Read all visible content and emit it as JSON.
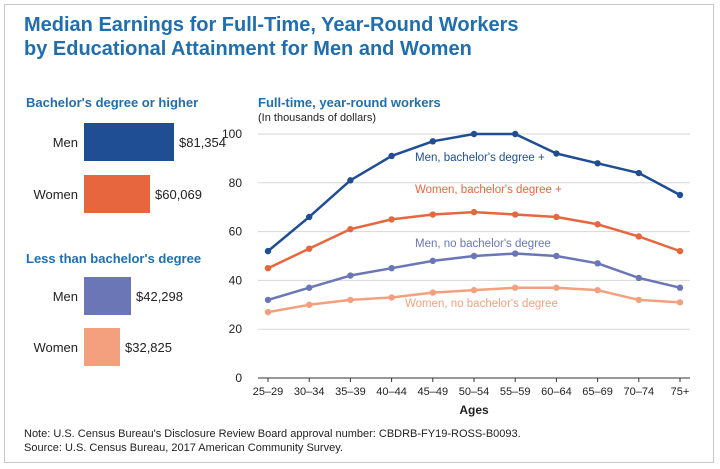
{
  "title_line1": "Median Earnings for Full-Time, Year-Round Workers",
  "title_line2": "by Educational Attainment for Men and Women",
  "note": "Note: U.S. Census Bureau's Disclosure Review Board approval number: CBDRB-FY19-ROSS-B0093.",
  "source": "Source: U.S. Census Bureau, 2017 American Community Survey.",
  "colors": {
    "title": "#1f6fb0",
    "men_ba": "#1f4e94",
    "women_ba": "#e8663d",
    "men_no_ba": "#6a76b5",
    "women_no_ba": "#f4a07e"
  },
  "chart_data": [
    {
      "type": "bar",
      "title": "Bachelor's degree or higher",
      "categories": [
        "Men",
        "Women"
      ],
      "values": [
        81354,
        60069
      ],
      "data_labels": [
        "$81,354",
        "$60,069"
      ],
      "colors": [
        "#1f4e94",
        "#e8663d"
      ]
    },
    {
      "type": "bar",
      "title": "Less than bachelor's degree",
      "categories": [
        "Men",
        "Women"
      ],
      "values": [
        42298,
        32825
      ],
      "data_labels": [
        "$42,298",
        "$32,825"
      ],
      "colors": [
        "#6a76b5",
        "#f4a07e"
      ]
    },
    {
      "type": "line",
      "title": "Full-time, year-round workers",
      "subtitle": "(In thousands of dollars)",
      "xlabel": "Ages",
      "ylabel": "",
      "categories": [
        "25–29",
        "30–34",
        "35–39",
        "40–44",
        "45–49",
        "50–54",
        "55–59",
        "60–64",
        "65–69",
        "70–74",
        "75+"
      ],
      "ylim": [
        0,
        100
      ],
      "yticks": [
        0,
        20,
        40,
        60,
        80,
        100
      ],
      "grid": true,
      "series": [
        {
          "name": "Men, bachelor's degree +",
          "color": "#1f4e94",
          "values": [
            52,
            66,
            81,
            91,
            97,
            100,
            100,
            92,
            88,
            84,
            75
          ]
        },
        {
          "name": "Women, bachelor's degree +",
          "color": "#e8663d",
          "values": [
            45,
            53,
            61,
            65,
            67,
            68,
            67,
            66,
            63,
            58,
            52
          ]
        },
        {
          "name": "Men, no bachelor's degree",
          "color": "#6a76b5",
          "values": [
            32,
            37,
            42,
            45,
            48,
            50,
            51,
            50,
            47,
            41,
            37
          ]
        },
        {
          "name": "Women, no bachelor's degree",
          "color": "#f4a07e",
          "values": [
            27,
            30,
            32,
            33,
            35,
            36,
            37,
            37,
            36,
            32,
            31
          ]
        }
      ]
    }
  ]
}
